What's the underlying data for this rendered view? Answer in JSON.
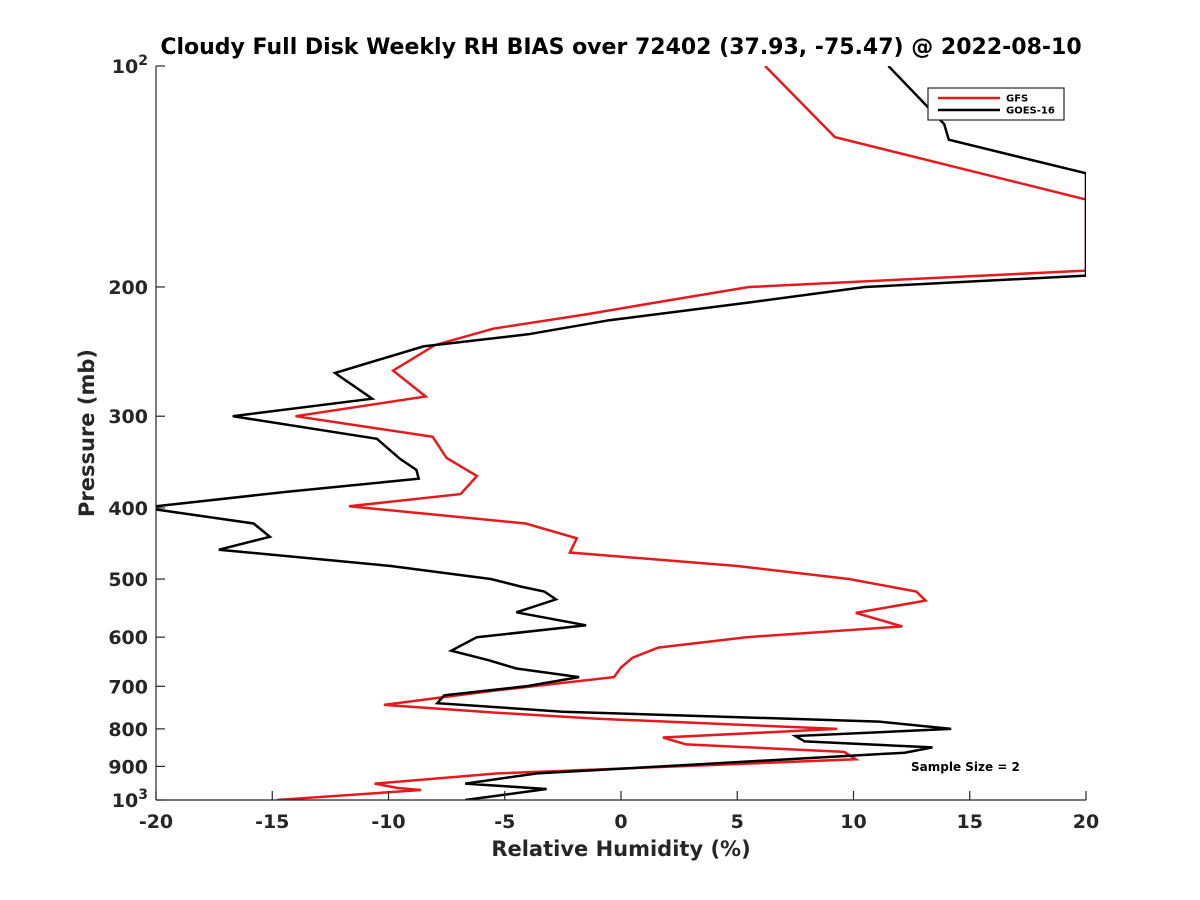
{
  "chart_data": {
    "type": "line",
    "title": "Cloudy Full Disk Weekly RH BIAS over 72402 (37.93, -75.47) @ 2022-08-10",
    "xlabel": "Relative Humidity (%)",
    "ylabel": "Pressure (mb)",
    "xlim": [
      -20,
      20
    ],
    "ylim": [
      100,
      1000
    ],
    "y_scale": "log",
    "y_reversed": true,
    "grid": false,
    "legend_position": "top-right",
    "x_ticks": [
      {
        "value": -20,
        "label": "-20"
      },
      {
        "value": -15,
        "label": "-15"
      },
      {
        "value": -10,
        "label": "-10"
      },
      {
        "value": -5,
        "label": "-5"
      },
      {
        "value": 0,
        "label": "0"
      },
      {
        "value": 5,
        "label": "5"
      },
      {
        "value": 10,
        "label": "10"
      },
      {
        "value": 15,
        "label": "15"
      },
      {
        "value": 20,
        "label": "20"
      }
    ],
    "y_ticks": [
      {
        "value": 100,
        "base": "10",
        "exp": "2"
      },
      {
        "value": 200,
        "label": "200"
      },
      {
        "value": 300,
        "label": "300"
      },
      {
        "value": 400,
        "label": "400"
      },
      {
        "value": 500,
        "label": "500"
      },
      {
        "value": 600,
        "label": "600"
      },
      {
        "value": 700,
        "label": "700"
      },
      {
        "value": 800,
        "label": "800"
      },
      {
        "value": 900,
        "label": "900"
      },
      {
        "value": 1000,
        "base": "10",
        "exp": "3"
      }
    ],
    "series": [
      {
        "name": "GFS",
        "color": "#e41a1c",
        "points": [
          [
            6.2,
            100
          ],
          [
            9.2,
            125
          ],
          [
            20,
            152
          ],
          [
            20,
            190
          ],
          [
            5.5,
            200
          ],
          [
            1.5,
            210
          ],
          [
            -1.5,
            218
          ],
          [
            -5.5,
            228
          ],
          [
            -8,
            240
          ],
          [
            -9.8,
            260
          ],
          [
            -8.4,
            282
          ],
          [
            -14,
            300
          ],
          [
            -8.1,
            320
          ],
          [
            -7.5,
            342
          ],
          [
            -6.2,
            362
          ],
          [
            -6.9,
            383
          ],
          [
            -11.7,
            398
          ],
          [
            -4.1,
            420
          ],
          [
            -1.9,
            440
          ],
          [
            -2.2,
            460
          ],
          [
            5.0,
            480
          ],
          [
            9.8,
            500
          ],
          [
            12.7,
            520
          ],
          [
            13.1,
            535
          ],
          [
            10.1,
            556
          ],
          [
            12.1,
            580
          ],
          [
            5.4,
            600
          ],
          [
            1.6,
            620
          ],
          [
            0.5,
            640
          ],
          [
            0,
            660
          ],
          [
            -0.3,
            680
          ],
          [
            -5.5,
            710
          ],
          [
            -10.2,
            742
          ],
          [
            -5.5,
            760
          ],
          [
            -1.0,
            775
          ],
          [
            9.3,
            800
          ],
          [
            1.8,
            822
          ],
          [
            2.8,
            840
          ],
          [
            9.6,
            860
          ],
          [
            10.1,
            880
          ],
          [
            -5.3,
            920
          ],
          [
            -10.6,
            950
          ],
          [
            -9.6,
            963
          ],
          [
            -8.6,
            969
          ],
          [
            -14.8,
            1000
          ]
        ]
      },
      {
        "name": "GOES-16",
        "color": "#000000",
        "points": [
          [
            11.5,
            100
          ],
          [
            13.9,
            120
          ],
          [
            14.1,
            126
          ],
          [
            20,
            140
          ],
          [
            20,
            193
          ],
          [
            10.5,
            200
          ],
          [
            5.5,
            210
          ],
          [
            -0.5,
            222
          ],
          [
            -4.0,
            232
          ],
          [
            -8.5,
            241
          ],
          [
            -12.3,
            262
          ],
          [
            -10.7,
            284
          ],
          [
            -16.7,
            300
          ],
          [
            -10.5,
            322
          ],
          [
            -9.5,
            343
          ],
          [
            -8.8,
            355
          ],
          [
            -8.7,
            365
          ],
          [
            -14.3,
            380
          ],
          [
            -20,
            398
          ],
          [
            -20,
            402
          ],
          [
            -15.8,
            420
          ],
          [
            -15.1,
            438
          ],
          [
            -17.3,
            456
          ],
          [
            -9.9,
            480
          ],
          [
            -5.6,
            500
          ],
          [
            -4.3,
            512
          ],
          [
            -3.3,
            520
          ],
          [
            -2.8,
            533
          ],
          [
            -4.5,
            555
          ],
          [
            -1.5,
            578
          ],
          [
            -6.2,
            600
          ],
          [
            -7.3,
            626
          ],
          [
            -5.7,
            645
          ],
          [
            -4.5,
            662
          ],
          [
            -1.8,
            680
          ],
          [
            -4.1,
            700
          ],
          [
            -7.6,
            720
          ],
          [
            -7.9,
            738
          ],
          [
            -2.5,
            758
          ],
          [
            11.1,
            782
          ],
          [
            14.2,
            800
          ],
          [
            7.5,
            818
          ],
          [
            7.9,
            832
          ],
          [
            13.4,
            848
          ],
          [
            12.2,
            862
          ],
          [
            -3.6,
            920
          ],
          [
            -6.7,
            950
          ],
          [
            -3.2,
            966
          ],
          [
            -6.7,
            1000
          ]
        ]
      }
    ],
    "annotations": [
      {
        "text": "Sample Size = 2"
      }
    ]
  }
}
